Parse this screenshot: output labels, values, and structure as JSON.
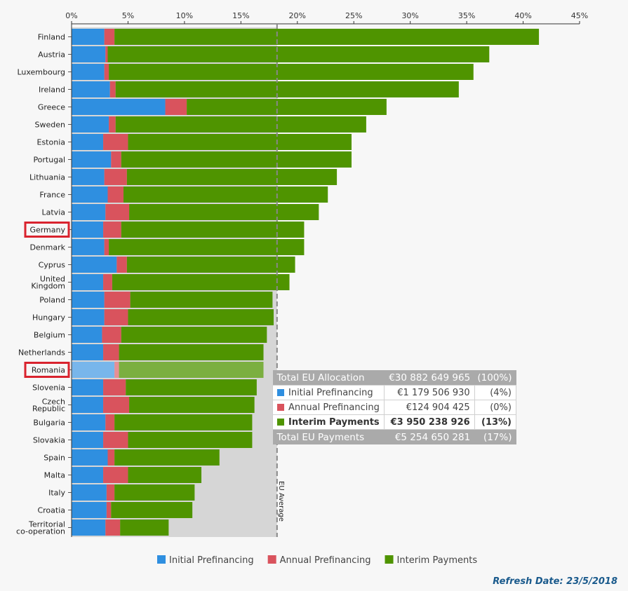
{
  "chart_data": {
    "type": "bar",
    "orientation": "horizontal",
    "stacked": true,
    "x_ticks": [
      "0%",
      "5%",
      "10%",
      "15%",
      "20%",
      "25%",
      "30%",
      "35%",
      "40%",
      "45%"
    ],
    "xlim": [
      0,
      45
    ],
    "eu_average_label": "EU Average",
    "eu_average_value": 18.2,
    "categories": [
      "Finland",
      "Austria",
      "Luxembourg",
      "Ireland",
      "Greece",
      "Sweden",
      "Estonia",
      "Portugal",
      "Lithuania",
      "France",
      "Latvia",
      "Germany",
      "Denmark",
      "Cyprus",
      "United Kingdom",
      "Poland",
      "Hungary",
      "Belgium",
      "Netherlands",
      "Romania",
      "Slovenia",
      "Czech Republic",
      "Bulgaria",
      "Slovakia",
      "Spain",
      "Malta",
      "Italy",
      "Croatia",
      "Territorial co-operation"
    ],
    "category_lines": [
      [
        "Finland"
      ],
      [
        "Austria"
      ],
      [
        "Luxembourg"
      ],
      [
        "Ireland"
      ],
      [
        "Greece"
      ],
      [
        "Sweden"
      ],
      [
        "Estonia"
      ],
      [
        "Portugal"
      ],
      [
        "Lithuania"
      ],
      [
        "France"
      ],
      [
        "Latvia"
      ],
      [
        "Germany"
      ],
      [
        "Denmark"
      ],
      [
        "Cyprus"
      ],
      [
        "United",
        "Kingdom"
      ],
      [
        "Poland"
      ],
      [
        "Hungary"
      ],
      [
        "Belgium"
      ],
      [
        "Netherlands"
      ],
      [
        "Romania"
      ],
      [
        "Slovenia"
      ],
      [
        "Czech",
        "Republic"
      ],
      [
        "Bulgaria"
      ],
      [
        "Slovakia"
      ],
      [
        "Spain"
      ],
      [
        "Malta"
      ],
      [
        "Italy"
      ],
      [
        "Croatia"
      ],
      [
        "Territorial",
        "co-operation"
      ]
    ],
    "highlighted": [
      "Germany",
      "Romania"
    ],
    "selected": "Romania",
    "series": [
      {
        "name": "Initial Prefinancing",
        "color": "#2f8fe0",
        "values": [
          2.9,
          3.0,
          2.9,
          3.4,
          8.3,
          3.3,
          2.8,
          3.5,
          2.9,
          3.2,
          3.0,
          2.8,
          2.9,
          4.0,
          2.8,
          2.9,
          2.9,
          2.7,
          2.8,
          3.8,
          2.8,
          2.8,
          3.0,
          2.8,
          3.2,
          2.8,
          3.1,
          3.1,
          3.0
        ]
      },
      {
        "name": "Annual Prefinancing",
        "color": "#d9535d",
        "values": [
          0.9,
          0.2,
          0.4,
          0.5,
          1.9,
          0.6,
          2.2,
          0.9,
          2.0,
          1.4,
          2.1,
          1.6,
          0.4,
          0.9,
          0.8,
          2.3,
          2.1,
          1.7,
          1.4,
          0.4,
          2.0,
          2.3,
          0.8,
          2.2,
          0.6,
          2.2,
          0.7,
          0.4,
          1.3
        ]
      },
      {
        "name": "Interim Payments",
        "color": "#4f9400",
        "values": [
          37.6,
          33.8,
          32.3,
          30.4,
          17.7,
          22.2,
          19.8,
          20.4,
          18.6,
          18.1,
          16.8,
          16.2,
          17.3,
          14.9,
          15.7,
          12.6,
          12.9,
          12.9,
          12.8,
          12.8,
          11.6,
          11.1,
          12.2,
          11.0,
          9.3,
          6.5,
          7.1,
          7.2,
          4.3
        ]
      }
    ],
    "legend_position": "bottom"
  },
  "tooltip": {
    "total_allocation": {
      "label": "Total EU Allocation",
      "amount": "€30 882 649 965",
      "pct": "(100%)"
    },
    "rows": [
      {
        "label": "Initial Prefinancing",
        "amount": "€1 179 506 930",
        "pct": "(4%)",
        "color": "#2f8fe0"
      },
      {
        "label": "Annual Prefinancing",
        "amount": "€124 904 425",
        "pct": "(0%)",
        "color": "#d9535d"
      },
      {
        "label": "Interim Payments",
        "amount": "€3 950 238 926",
        "pct": "(13%)",
        "color": "#4f9400"
      }
    ],
    "total_payments": {
      "label": "Total EU Payments",
      "amount": "€5 254 650 281",
      "pct": "(17%)"
    }
  },
  "refresh_date": "Refresh Date: 23/5/2018"
}
